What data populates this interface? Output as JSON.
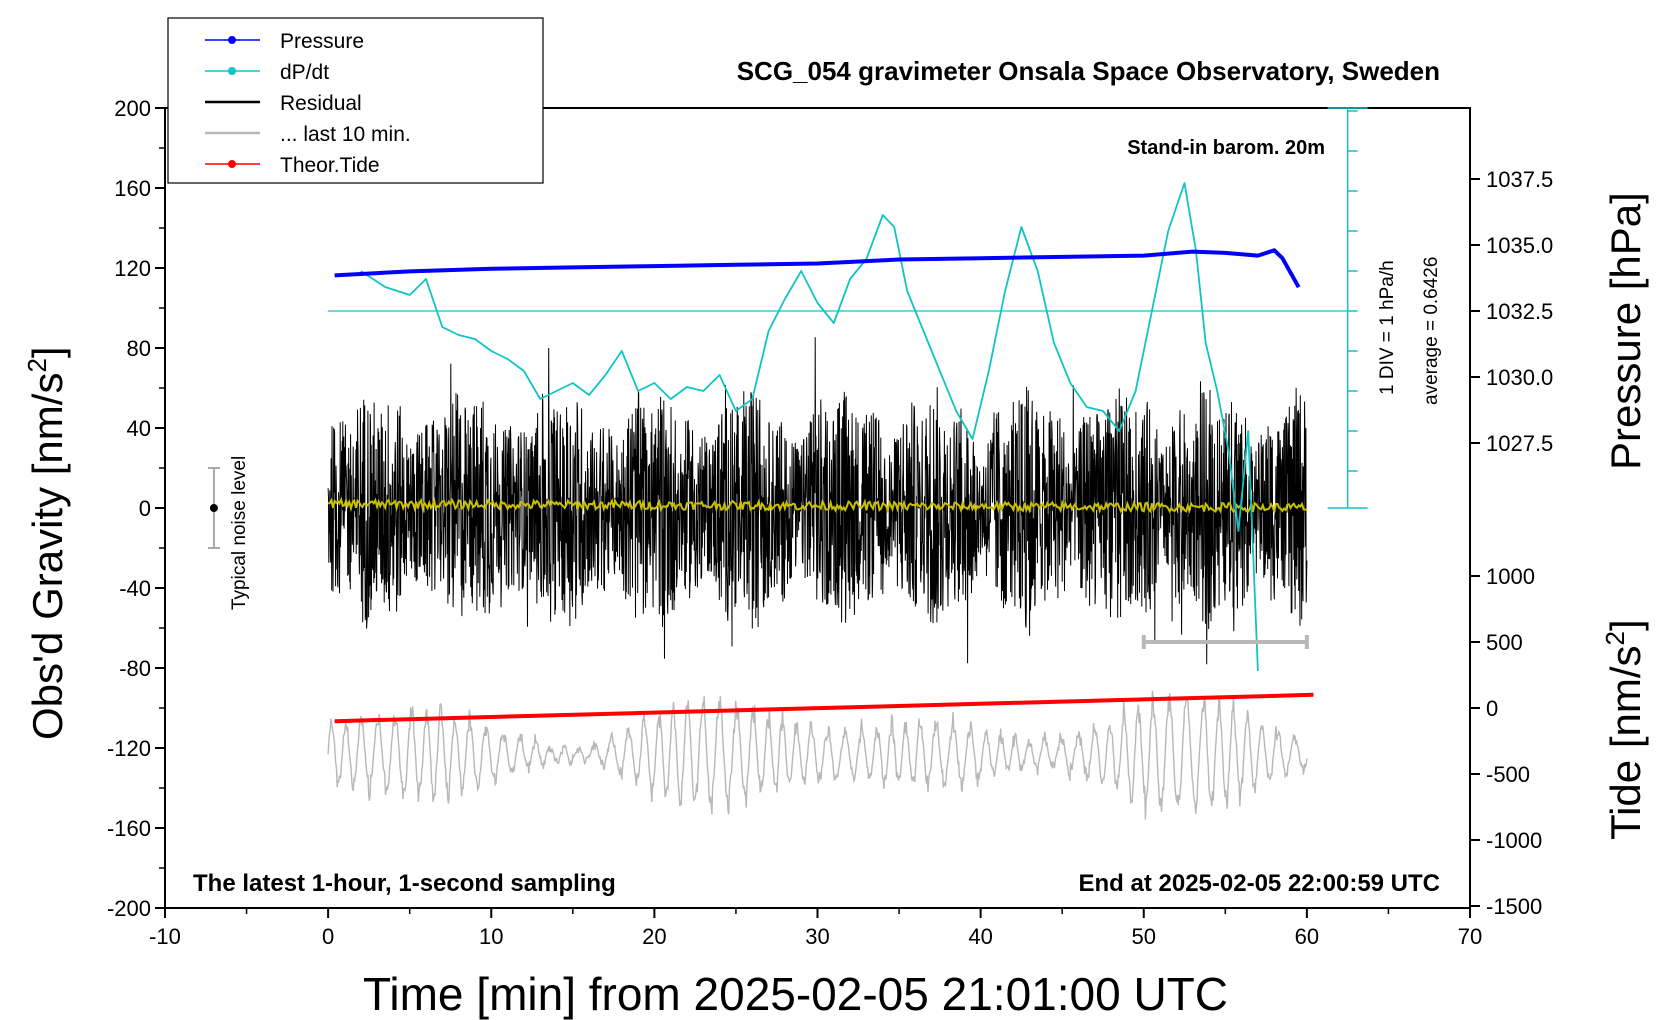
{
  "chart_data": {
    "type": "line",
    "title": "SCG_054 gravimeter Onsala Space Observatory, Sweden",
    "xlabel": "Time [min] from 2025-02-05 21:01:00 UTC",
    "ylabel_left": "Obs'd Gravity [nm/s",
    "ylabel_left_sup": "2",
    "ylabel_left_close": "]",
    "ylabel_right_top": "Pressure [hPa]",
    "ylabel_right_bottom": "Tide [nm/s",
    "ylabel_right_bottom_sup": "2",
    "ylabel_right_bottom_close": "]",
    "xlim": [
      -10,
      70
    ],
    "ylim_left": [
      -200,
      200
    ],
    "x_ticks": [
      "-10",
      "0",
      "10",
      "20",
      "30",
      "40",
      "50",
      "60",
      "70"
    ],
    "y_ticks_left": [
      "200",
      "160",
      "120",
      "80",
      "40",
      "0",
      "-40",
      "-80",
      "-120",
      "-160",
      "-200"
    ],
    "pressure_ticks": [
      "1037.5",
      "1035.0",
      "1032.5",
      "1030.0",
      "1027.5"
    ],
    "tide_ticks": [
      "1000",
      "500",
      "0",
      "-500",
      "-1000",
      "-1500"
    ],
    "annotations": {
      "barometer": "Stand-in barom. 20m",
      "scale_div": "1 DIV = 1 hPa/h",
      "scale_avg": "average = 0.6426",
      "noise": "Typical noise level",
      "bottom_left": "The latest 1-hour, 1-second sampling",
      "bottom_right": "End at 2025-02-05 22:00:59 UTC"
    },
    "legend": [
      {
        "label": "Pressure",
        "color": "#0000ff",
        "marker": true
      },
      {
        "label": "dP/dt",
        "color": "#11c4c4",
        "marker": true
      },
      {
        "label": "Residual",
        "color": "#000000",
        "marker": false
      },
      {
        "label": "... last 10 min.",
        "color": "#b8b8b8",
        "marker": false
      },
      {
        "label": "Theor.Tide",
        "color": "#ff0000",
        "marker": true
      }
    ],
    "series": [
      {
        "name": "Pressure",
        "units": "hPa",
        "x": [
          0.4,
          5,
          10,
          15,
          20,
          25,
          30,
          35,
          40,
          45,
          50,
          53,
          55,
          57,
          58,
          58.5,
          59.5
        ],
        "values": [
          1033.85,
          1034.0,
          1034.1,
          1034.15,
          1034.2,
          1034.25,
          1034.3,
          1034.45,
          1034.5,
          1034.55,
          1034.6,
          1034.75,
          1034.7,
          1034.6,
          1034.8,
          1034.5,
          1033.4
        ]
      },
      {
        "name": "dP/dt",
        "units": "hPa/h",
        "x": [
          2,
          3.5,
          5,
          6,
          7,
          8,
          9,
          10,
          11,
          12,
          13,
          14,
          15,
          16,
          17,
          18,
          19,
          20,
          21,
          22,
          23,
          24,
          25,
          26,
          27,
          28,
          29,
          30,
          31,
          32,
          33,
          34,
          34.7,
          35.5,
          36.5,
          37.5,
          38.5,
          39.5,
          40.5,
          41.5,
          42.5,
          43.5,
          44.5,
          45.5,
          46.5,
          47.5,
          48.5,
          49.5,
          50.5,
          51.5,
          52.5,
          53.2,
          53.8,
          54.5,
          55.2,
          55.8,
          56.4,
          57
        ],
        "values": [
          1.0,
          0.6,
          0.4,
          0.8,
          -0.4,
          -0.6,
          -0.7,
          -1.0,
          -1.2,
          -1.5,
          -2.2,
          -2.0,
          -1.8,
          -2.1,
          -1.6,
          -1.0,
          -2.0,
          -1.8,
          -2.2,
          -1.9,
          -2.0,
          -1.6,
          -2.5,
          -2.2,
          -0.5,
          0.3,
          1.0,
          0.2,
          -0.3,
          0.8,
          1.3,
          2.4,
          2.1,
          0.5,
          -0.5,
          -1.5,
          -2.5,
          -3.2,
          -1.5,
          0.5,
          2.1,
          1.0,
          -0.8,
          -1.8,
          -2.4,
          -2.5,
          -3.0,
          -2.0,
          0.0,
          2.0,
          3.2,
          1.5,
          -0.8,
          -2.0,
          -3.5,
          -5.5,
          -3.0,
          -9.0
        ]
      },
      {
        "name": "Theor.Tide",
        "units": "nm/s2",
        "x": [
          0.4,
          60.4
        ],
        "values": [
          -100,
          100
        ]
      }
    ],
    "noise_bar": {
      "x": -7,
      "y": 0,
      "half_range": 20
    },
    "last10_bar": {
      "x_start": 50,
      "x_end": 60,
      "tide_value": 500
    }
  },
  "colors": {
    "pressure": "#0000ff",
    "dpdt": "#11c4c4",
    "residual": "#000000",
    "lowpass": "#c8c000",
    "last10": "#b8b8b8",
    "tide": "#ff0000"
  }
}
